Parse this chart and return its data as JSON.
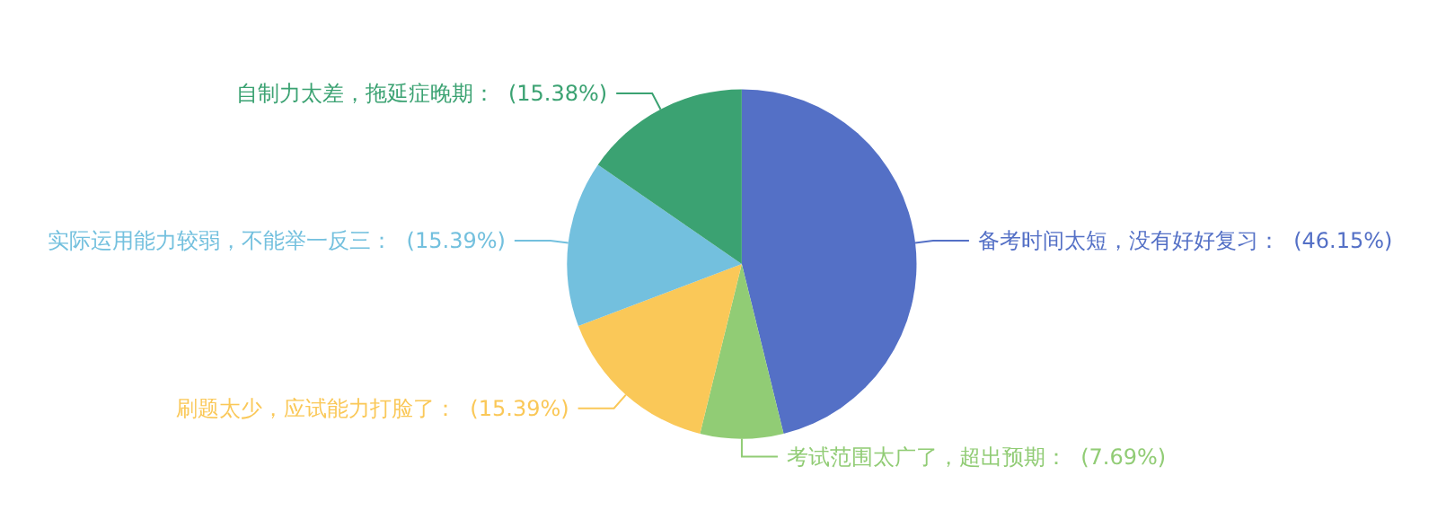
{
  "chart_data": {
    "type": "pie",
    "categories": [
      "备考时间太短，没有好好复习",
      "考试范围太广了，超出预期",
      "刷题太少，应试能力打脸了",
      "实际运用能力较弱，不能举一反三",
      "自制力太差，拖延症晚期"
    ],
    "values": [
      46.15,
      7.69,
      15.39,
      15.39,
      15.38
    ],
    "colors": [
      "#5470c6",
      "#91cc75",
      "#fac858",
      "#73c0de",
      "#3ba272"
    ],
    "value_labels": [
      "(46.15%)",
      "(7.69%)",
      "(15.39%)",
      "(15.39%)",
      "(15.38%)"
    ],
    "legend": false
  }
}
